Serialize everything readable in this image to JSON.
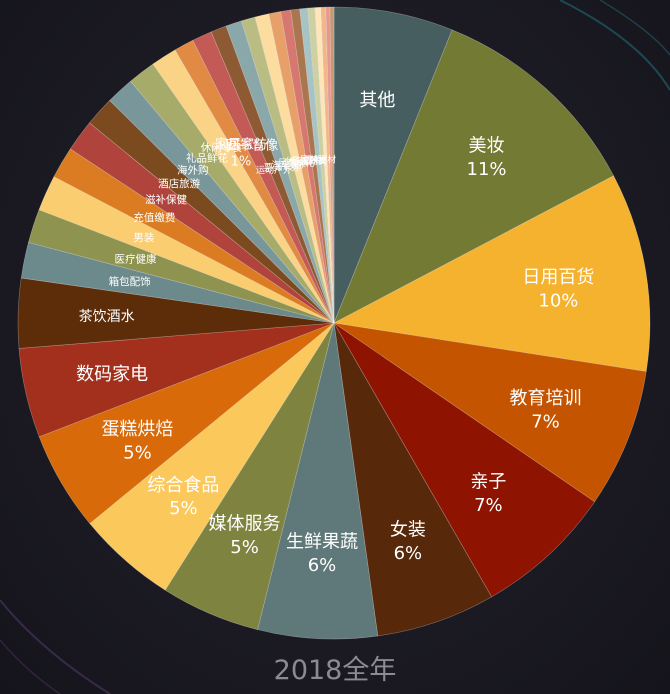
{
  "chart_data": {
    "type": "pie",
    "title": "2018全年",
    "slices": [
      {
        "label": "其他",
        "value": 6.0,
        "pct_label": "",
        "color": "#475e60"
      },
      {
        "label": "美妆",
        "value": 11.0,
        "pct_label": "11%",
        "color": "#727a33"
      },
      {
        "label": "日用百货",
        "value": 10.0,
        "pct_label": "10%",
        "color": "#f5b22f"
      },
      {
        "label": "教育培训",
        "value": 7.0,
        "pct_label": "7%",
        "color": "#c55400"
      },
      {
        "label": "亲子",
        "value": 7.0,
        "pct_label": "7%",
        "color": "#8e1300"
      },
      {
        "label": "女装",
        "value": 6.0,
        "pct_label": "6%",
        "color": "#57280a"
      },
      {
        "label": "生鲜果蔬",
        "value": 6.0,
        "pct_label": "6%",
        "color": "#5f7879"
      },
      {
        "label": "媒体服务",
        "value": 5.0,
        "pct_label": "5%",
        "color": "#7e8440"
      },
      {
        "label": "综合食品",
        "value": 5.0,
        "pct_label": "5%",
        "color": "#fbc85b"
      },
      {
        "label": "蛋糕烘焙",
        "value": 5.0,
        "pct_label": "5%",
        "color": "#d86a09"
      },
      {
        "label": "数码家电",
        "value": 4.5,
        "pct_label": "",
        "color": "#a2301d"
      },
      {
        "label": "茶饮酒水",
        "value": 3.5,
        "pct_label": "",
        "color": "#5d2d0a"
      },
      {
        "label": "箱包配饰",
        "value": 1.8,
        "pct_label": "",
        "color": "#6c8a8b"
      },
      {
        "label": "医疗健康",
        "value": 1.7,
        "pct_label": "",
        "color": "#8e9450"
      },
      {
        "label": "男装",
        "value": 1.8,
        "pct_label": "",
        "color": "#fbcd71"
      },
      {
        "label": "充值缴费",
        "value": 1.6,
        "pct_label": "",
        "color": "#dc7c22"
      },
      {
        "label": "滋补保健",
        "value": 1.6,
        "pct_label": "",
        "color": "#b0433c"
      },
      {
        "label": "酒店旅游",
        "value": 1.5,
        "pct_label": "",
        "color": "#7c4a1f"
      },
      {
        "label": "海外购",
        "value": 1.4,
        "pct_label": "",
        "color": "#79979a"
      },
      {
        "label": "礼品鲜花",
        "value": 1.4,
        "pct_label": "",
        "color": "#a6ab6a"
      },
      {
        "label": "休闲零食",
        "value": 1.3,
        "pct_label": "",
        "color": "#fbd387"
      },
      {
        "label": "家居家纺",
        "value": 1.0,
        "pct_label": "1%",
        "color": "#e08a44"
      },
      {
        "label": "图书音像",
        "value": 1.0,
        "pct_label": "",
        "color": "#c45a55"
      },
      {
        "label": "运动户外",
        "value": 0.8,
        "pct_label": "",
        "color": "#8d5a33"
      },
      {
        "label": "票务卡券",
        "value": 0.8,
        "pct_label": "",
        "color": "#8aa8aa"
      },
      {
        "label": "汽车养护",
        "value": 0.7,
        "pct_label": "",
        "color": "#b9bd84"
      },
      {
        "label": "民俗文化",
        "value": 0.7,
        "pct_label": "",
        "color": "#fddca0"
      },
      {
        "label": "休闲娱乐",
        "value": 0.6,
        "pct_label": "",
        "color": "#e8a06a"
      },
      {
        "label": "餐饮外卖",
        "value": 0.5,
        "pct_label": "",
        "color": "#d77870"
      },
      {
        "label": "宠物",
        "value": 0.45,
        "pct_label": "",
        "color": "#a97650"
      },
      {
        "label": "家装建材",
        "value": 0.4,
        "pct_label": "",
        "color": "#a8c3c4"
      },
      {
        "label": "",
        "value": 0.35,
        "pct_label": "",
        "color": "#cdd0a0"
      },
      {
        "label": "",
        "value": 0.3,
        "pct_label": "",
        "color": "#fee5ba"
      },
      {
        "label": "",
        "value": 0.25,
        "pct_label": "",
        "color": "#f0b889"
      },
      {
        "label": "",
        "value": 0.2,
        "pct_label": "",
        "color": "#e9968f"
      },
      {
        "label": "",
        "value": 0.2,
        "pct_label": "",
        "color": "#c9986f"
      }
    ]
  }
}
